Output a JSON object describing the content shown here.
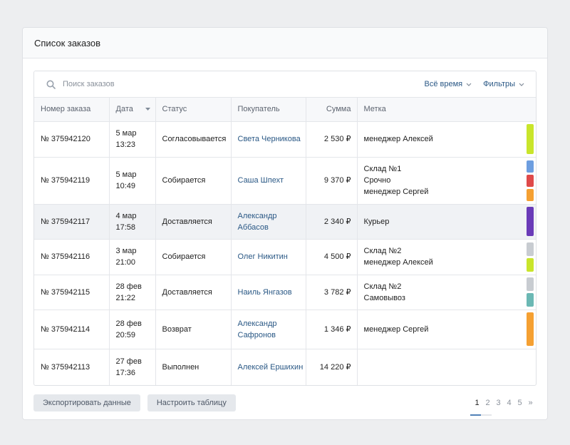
{
  "card": {
    "title": "Список заказов"
  },
  "search": {
    "placeholder": "Поиск заказов"
  },
  "filters": {
    "period": "Всё время",
    "filters": "Фильтры"
  },
  "columns": {
    "order": "Номер заказа",
    "date": "Дата",
    "status": "Статус",
    "buyer": "Покупатель",
    "sum": "Сумма",
    "tag": "Метка"
  },
  "rows": [
    {
      "order": "№ 375942120",
      "date": [
        "5 мар",
        "13:23"
      ],
      "status": "Согласовывается",
      "buyer": [
        "Света Черникова"
      ],
      "sum": "2 530 ₽",
      "tags": [
        "менеджер Алексей"
      ],
      "colors": [
        "#c9e52b"
      ],
      "highlight": false
    },
    {
      "order": "№ 375942119",
      "date": [
        "5 мар",
        "10:49"
      ],
      "status": "Собирается",
      "buyer": [
        "Саша Шпехт"
      ],
      "sum": "9 370 ₽",
      "tags": [
        "Склад №1",
        "Срочно",
        "менеджер Сергей"
      ],
      "colors": [
        "#6d9ee0",
        "#df4a4a",
        "#f5a032"
      ],
      "highlight": false
    },
    {
      "order": "№ 375942117",
      "date": [
        "4 мар",
        "17:58"
      ],
      "status": "Доставляется",
      "buyer": [
        "Александр",
        "Аббасов"
      ],
      "sum": "2 340 ₽",
      "tags": [
        "Курьер"
      ],
      "colors": [
        "#6a3bb8"
      ],
      "highlight": true
    },
    {
      "order": "№ 375942116",
      "date": [
        "3 мар",
        "21:00"
      ],
      "status": "Собирается",
      "buyer": [
        "Олег Никитин"
      ],
      "sum": "4 500 ₽",
      "tags": [
        "Склад №2",
        "менеджер Алексей"
      ],
      "colors": [
        "#c8ccd1",
        "#c9e52b"
      ],
      "highlight": false
    },
    {
      "order": "№ 375942115",
      "date": [
        "28 фев",
        "21:22"
      ],
      "status": "Доставляется",
      "buyer": [
        "Наиль Янгазов"
      ],
      "sum": "3 782 ₽",
      "tags": [
        "Склад №2",
        "Самовывоз"
      ],
      "colors": [
        "#c8ccd1",
        "#6bb8b4"
      ],
      "highlight": false
    },
    {
      "order": "№ 375942114",
      "date": [
        "28 фев",
        "20:59"
      ],
      "status": "Возврат",
      "buyer": [
        "Александр",
        "Сафронов"
      ],
      "sum": "1 346 ₽",
      "tags": [
        "менеджер Сергей"
      ],
      "colors": [
        "#f5a032"
      ],
      "highlight": false
    },
    {
      "order": "№ 375942113",
      "date": [
        "27 фев",
        "17:36"
      ],
      "status": "Выполнен",
      "buyer": [
        "Алексей Ершихин"
      ],
      "sum": "14 220 ₽",
      "tags": [],
      "colors": [],
      "highlight": false
    }
  ],
  "actions": {
    "export": "Экспортировать данные",
    "configure": "Настроить таблицу"
  },
  "pagination": {
    "pages": [
      "1",
      "2",
      "3",
      "4",
      "5"
    ],
    "next": "»",
    "current": "1"
  }
}
